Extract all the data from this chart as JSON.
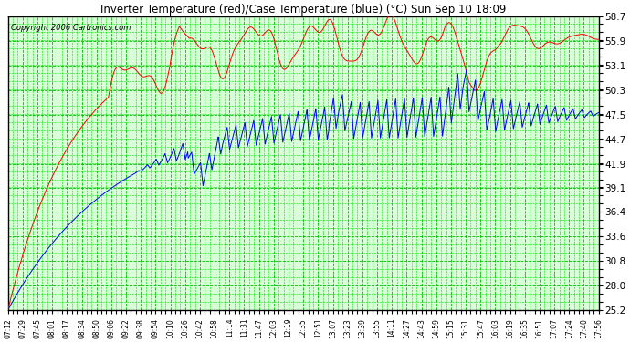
{
  "title": "Inverter Temperature (red)/Case Temperature (blue) (°C) Sun Sep 10 18:09",
  "copyright": "Copyright 2006 Cartronics.com",
  "background_color": "#ffffff",
  "plot_bg_color": "#d8ffd8",
  "grid_color": "#00bb00",
  "grid_color_minor": "#00dd00",
  "line_color_red": "red",
  "line_color_blue": "blue",
  "border_color": "#000000",
  "ylim": [
    25.2,
    58.7
  ],
  "yticks": [
    25.2,
    28.0,
    30.8,
    33.6,
    36.4,
    39.1,
    41.9,
    44.7,
    47.5,
    50.3,
    53.1,
    55.9,
    58.7
  ],
  "xtick_labels": [
    "07:12",
    "07:29",
    "07:45",
    "08:01",
    "08:17",
    "08:34",
    "08:50",
    "09:06",
    "09:22",
    "09:38",
    "09:54",
    "10:10",
    "10:26",
    "10:42",
    "10:58",
    "11:14",
    "11:31",
    "11:47",
    "12:03",
    "12:19",
    "12:35",
    "12:51",
    "13:07",
    "13:23",
    "13:39",
    "13:55",
    "14:11",
    "14:27",
    "14:43",
    "14:59",
    "15:15",
    "15:31",
    "15:47",
    "16:03",
    "16:19",
    "16:35",
    "16:51",
    "17:07",
    "17:24",
    "17:40",
    "17:56"
  ],
  "num_points": 1200
}
